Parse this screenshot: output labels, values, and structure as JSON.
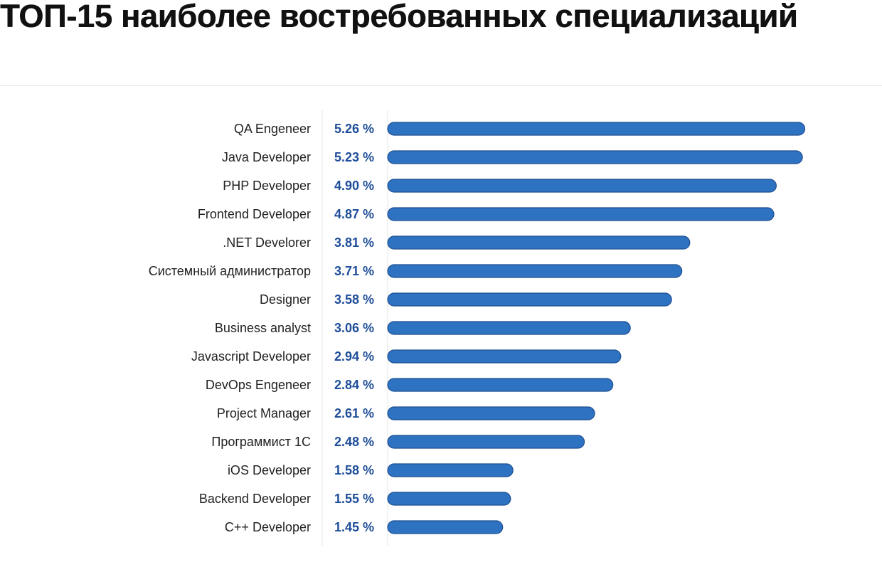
{
  "title": "ТОП-15 наиболее востребованных специализаций",
  "chart_data": {
    "type": "bar",
    "orientation": "horizontal",
    "categories": [
      "QA Engeneer",
      "Java Developer",
      "PHP Developer",
      "Frontend Developer",
      ".NET Develorer",
      "Системный администратор",
      "Designer",
      "Business analyst",
      "Javascript Developer",
      "DevOps Engeneer",
      "Project Manager",
      "Программист 1С",
      "iOS Developer",
      "Backend Developer",
      "C++ Developer"
    ],
    "values": [
      5.26,
      5.23,
      4.9,
      4.87,
      3.81,
      3.71,
      3.58,
      3.06,
      2.94,
      2.84,
      2.61,
      2.48,
      1.58,
      1.55,
      1.45
    ],
    "value_labels": [
      "5.26 %",
      "5.23 %",
      "4.90 %",
      "4.87 %",
      "3.81 %",
      "3.71 %",
      "3.58 %",
      "3.06 %",
      "2.94 %",
      "2.84 %",
      "2.61 %",
      "2.48 %",
      "1.58 %",
      "1.55 %",
      "1.45 %"
    ],
    "bar_color": "#2e72c2",
    "bar_edge_color": "#1f4f8f",
    "value_label_color": "#1f4e99",
    "grid": false
  }
}
